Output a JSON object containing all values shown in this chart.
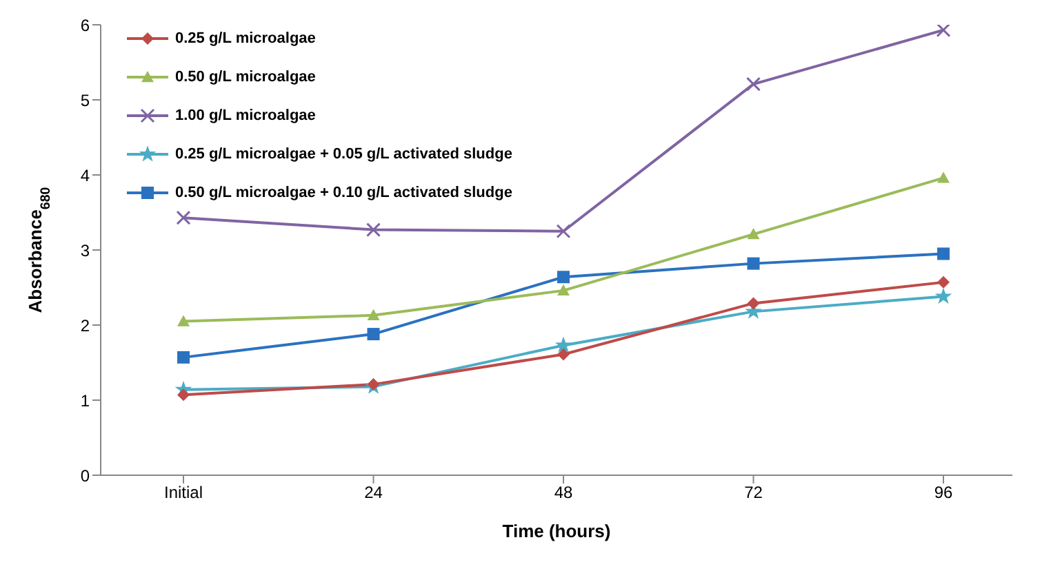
{
  "chart_data": {
    "type": "line",
    "xlabel": "Time (hours)",
    "ylabel": "Absorbance$_{680}$",
    "categories": [
      "Initial",
      "24",
      "48",
      "72",
      "96"
    ],
    "ylim": [
      0,
      6
    ],
    "yticks": [
      0,
      1,
      2,
      3,
      4,
      5,
      6
    ],
    "grid": false,
    "legend": "top left",
    "series": [
      {
        "name": "0.25 g/L microalgae",
        "color": "#be4b48",
        "marker": "diamond",
        "values": [
          1.07,
          1.21,
          1.61,
          2.29,
          2.57
        ]
      },
      {
        "name": "0.50 g/L microalgae",
        "color": "#9bbb59",
        "marker": "triangle",
        "values": [
          2.05,
          2.13,
          2.46,
          3.21,
          3.96
        ]
      },
      {
        "name": "1.00 g/L microalgae",
        "color": "#8064a2",
        "marker": "cross",
        "values": [
          3.43,
          3.27,
          3.25,
          5.21,
          5.93
        ]
      },
      {
        "name": "0.25 g/L microalgae + 0.05 g/L activated sludge",
        "color": "#4bacc6",
        "marker": "star",
        "values": [
          1.14,
          1.18,
          1.73,
          2.18,
          2.38
        ]
      },
      {
        "name": "0.50 g/L microalgae + 0.10 g/L activated sludge",
        "color": "#2a72c0",
        "marker": "square",
        "values": [
          1.57,
          1.88,
          2.64,
          2.82,
          2.95
        ]
      }
    ]
  }
}
